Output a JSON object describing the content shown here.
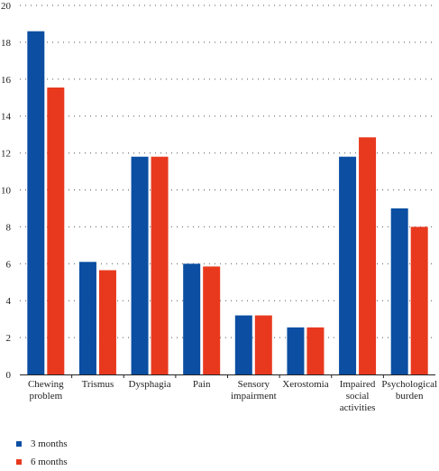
{
  "chart_data": {
    "type": "bar",
    "categories": [
      [
        "Chewing",
        "problem"
      ],
      [
        "Trismus"
      ],
      [
        "Dysphagia"
      ],
      [
        "Pain"
      ],
      [
        "Sensory",
        "impairment"
      ],
      [
        "Xerostomia"
      ],
      [
        "Impaired",
        "social",
        "activities"
      ],
      [
        "Psychological",
        "burden"
      ]
    ],
    "series": [
      {
        "name": "3 months",
        "color": "#0b4ea2",
        "values": [
          18.6,
          6.1,
          11.8,
          6.0,
          3.2,
          2.55,
          11.8,
          9.0
        ]
      },
      {
        "name": "6 months",
        "color": "#e8391e",
        "values": [
          15.55,
          5.65,
          11.8,
          5.85,
          3.2,
          2.55,
          12.85,
          8.0
        ]
      }
    ],
    "ylim": [
      0,
      20
    ],
    "yticks": [
      0,
      2,
      4,
      6,
      8,
      10,
      12,
      14,
      16,
      18,
      20
    ],
    "grid": true,
    "legend_position": "bottom-left"
  }
}
